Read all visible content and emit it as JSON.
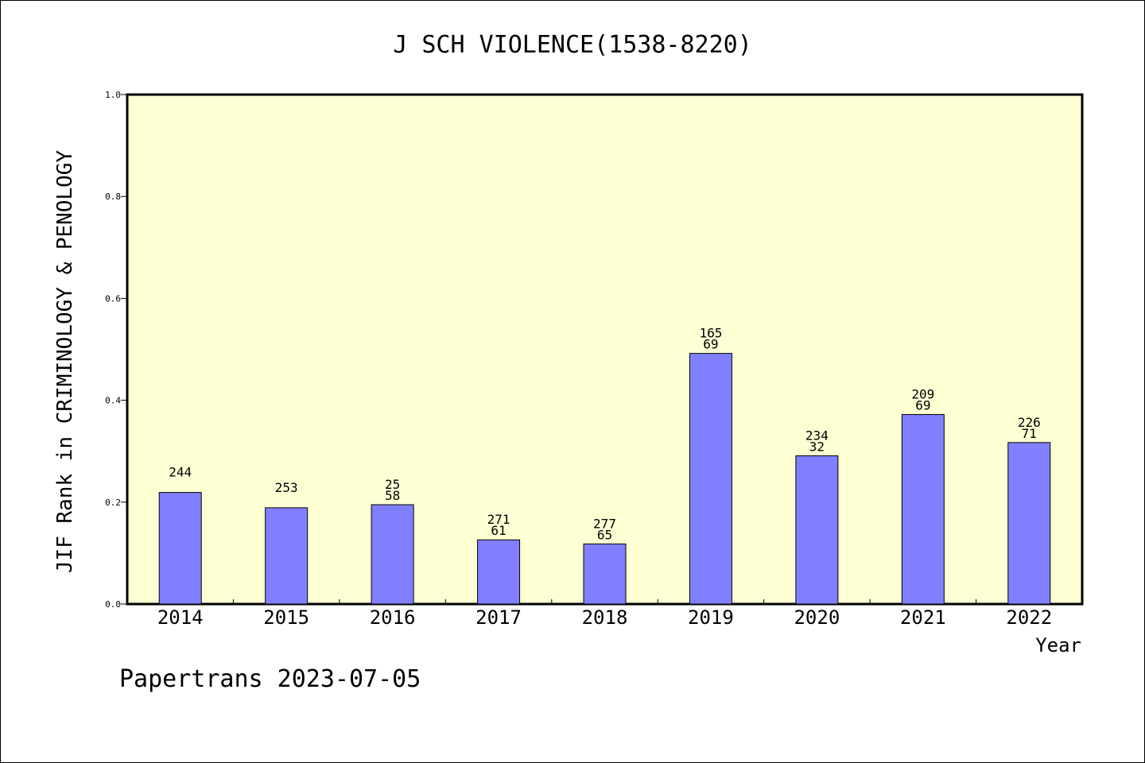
{
  "chart_data": {
    "type": "bar",
    "title": "J SCH VIOLENCE(1538-8220)",
    "xlabel": "Year",
    "ylabel": "JIF Rank in CRIMINOLOGY & PENOLOGY",
    "ylim": [
      0,
      1.0
    ],
    "yticks": [
      "0.0",
      "0.2",
      "0.4",
      "0.6",
      "0.8",
      "1.0"
    ],
    "categories": [
      "2014",
      "2015",
      "2016",
      "2017",
      "2018",
      "2019",
      "2020",
      "2021",
      "2022"
    ],
    "values": [
      0.219,
      0.189,
      0.195,
      0.126,
      0.118,
      0.492,
      0.291,
      0.372,
      0.317
    ],
    "labels": [
      [
        "244"
      ],
      [
        "253"
      ],
      [
        "25",
        "58"
      ],
      [
        "271",
        "61"
      ],
      [
        "277",
        "65"
      ],
      [
        "165",
        "69"
      ],
      [
        "234",
        "32"
      ],
      [
        "209",
        "69"
      ],
      [
        "226",
        "71"
      ]
    ],
    "grid": false,
    "colors": {
      "plot_bg": "#ffffd4",
      "bar": "#8080ff",
      "axis": "#000000"
    }
  },
  "footer": "Papertrans 2023-07-05"
}
